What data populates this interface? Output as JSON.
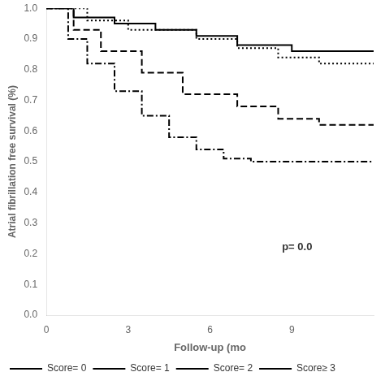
{
  "chart_data": {
    "type": "step",
    "xlabel": "Follow-up (mo",
    "ylabel": "Atrial fibrillation free survival (%)",
    "xlim": [
      0,
      12
    ],
    "ylim": [
      0.0,
      1.0
    ],
    "xticks": [
      0,
      3,
      6,
      9
    ],
    "yticks": [
      {
        "value": 0,
        "label": "0.0"
      },
      0.1,
      0.2,
      0.3,
      0.4,
      0.5,
      0.6,
      0.7,
      0.8,
      0.9,
      {
        "value": 1,
        "label": "1.0"
      }
    ],
    "grid": false,
    "legend": "lower left",
    "annotations": [
      "p= 0.0"
    ],
    "series": [
      {
        "name": "Score= 0",
        "color": "black",
        "line_style": "solid",
        "x": [
          0,
          1.0,
          1.0,
          2.5,
          2.5,
          4.0,
          4.0,
          5.5,
          5.5,
          7.0,
          7.0,
          9.0,
          9.0,
          12
        ],
        "values": [
          1.0,
          1.0,
          0.97,
          0.97,
          0.95,
          0.95,
          0.93,
          0.93,
          0.91,
          0.91,
          0.88,
          0.88,
          0.86,
          0.86
        ]
      },
      {
        "name": "Score= 1",
        "color": "black",
        "line_style": "dotted",
        "x": [
          0,
          1.5,
          1.5,
          3.0,
          3.0,
          5.5,
          5.5,
          7.0,
          7.0,
          8.5,
          8.5,
          10.0,
          10.0,
          12
        ],
        "values": [
          1.0,
          1.0,
          0.96,
          0.96,
          0.93,
          0.93,
          0.9,
          0.9,
          0.87,
          0.87,
          0.84,
          0.84,
          0.82,
          0.82
        ]
      },
      {
        "name": "Score= 2",
        "color": "black",
        "line_style": "dashed",
        "x": [
          0,
          1.0,
          1.0,
          2.0,
          2.0,
          3.5,
          3.5,
          5.0,
          5.0,
          7.0,
          7.0,
          8.5,
          8.5,
          10.0,
          10.0,
          12
        ],
        "values": [
          1.0,
          1.0,
          0.93,
          0.93,
          0.86,
          0.86,
          0.79,
          0.79,
          0.72,
          0.72,
          0.68,
          0.68,
          0.64,
          0.64,
          0.62,
          0.62
        ]
      },
      {
        "name": "Score≥ 3",
        "color": "black",
        "line_style": "dashdot",
        "x": [
          0,
          0.8,
          0.8,
          1.5,
          1.5,
          2.5,
          2.5,
          3.5,
          3.5,
          4.5,
          4.5,
          5.5,
          5.5,
          6.5,
          6.5,
          7.5,
          7.5,
          9.0,
          9.0,
          10.5,
          10.5,
          12
        ],
        "values": [
          1.0,
          1.0,
          0.9,
          0.9,
          0.82,
          0.82,
          0.73,
          0.73,
          0.65,
          0.65,
          0.58,
          0.58,
          0.54,
          0.54,
          0.51,
          0.51,
          0.5,
          0.5,
          0.5,
          0.5,
          0.5,
          0.5
        ]
      }
    ]
  }
}
